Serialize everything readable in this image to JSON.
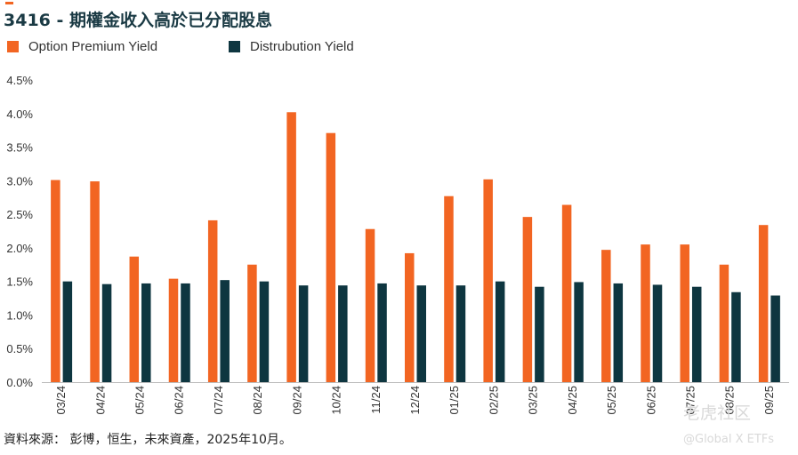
{
  "title": "3416 - 期權金收入高於已分配股息",
  "source": "資料來源： 彭博，恒生，未來資產，2025年10月。",
  "watermark": {
    "community": "老虎社区",
    "account": "@Global X ETFs"
  },
  "colors": {
    "accent": "#f26522",
    "dark": "#0e3640"
  },
  "chart_data": {
    "type": "bar",
    "title": "3416 - 期權金收入高於已分配股息",
    "xlabel": "",
    "ylabel": "",
    "ylim": [
      0,
      4.5
    ],
    "yticks": [
      "0.0%",
      "0.5%",
      "1.0%",
      "1.5%",
      "2.0%",
      "2.5%",
      "3.0%",
      "3.5%",
      "4.0%",
      "4.5%"
    ],
    "grid": false,
    "legend_position": "top-left",
    "categories": [
      "03/24",
      "04/24",
      "05/24",
      "06/24",
      "07/24",
      "08/24",
      "09/24",
      "10/24",
      "11/24",
      "12/24",
      "01/25",
      "02/25",
      "03/25",
      "04/25",
      "05/25",
      "06/25",
      "07/25",
      "08/25",
      "09/25"
    ],
    "series": [
      {
        "name": "Option Premium Yield",
        "color": "#f26522",
        "values": [
          3.01,
          2.99,
          1.87,
          1.54,
          2.41,
          1.75,
          4.02,
          3.71,
          2.28,
          1.92,
          2.77,
          3.02,
          2.46,
          2.64,
          1.97,
          2.05,
          2.05,
          1.75,
          2.34
        ]
      },
      {
        "name": "Distrubution Yield",
        "color": "#0e3640",
        "values": [
          1.5,
          1.46,
          1.47,
          1.47,
          1.52,
          1.5,
          1.44,
          1.44,
          1.47,
          1.44,
          1.44,
          1.5,
          1.42,
          1.49,
          1.47,
          1.45,
          1.42,
          1.34,
          1.29
        ]
      }
    ]
  }
}
